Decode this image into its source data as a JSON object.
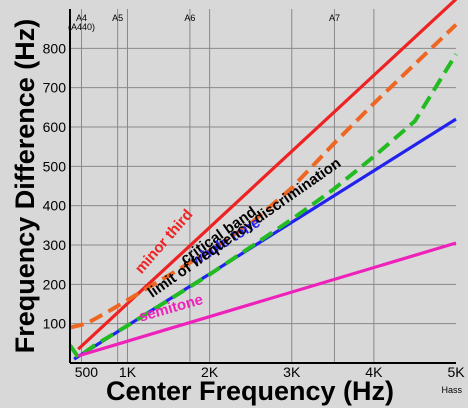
{
  "chart_data": {
    "type": "line",
    "title": "",
    "xlabel": "Center Frequency (Hz)",
    "ylabel": "Frequency Difference (Hz)",
    "xlim": [
      300,
      5000
    ],
    "ylim": [
      0,
      900
    ],
    "x_ticks": [
      {
        "value": 500,
        "label": "500"
      },
      {
        "value": 1000,
        "label": "1K"
      },
      {
        "value": 2000,
        "label": "2K"
      },
      {
        "value": 3000,
        "label": "3K"
      },
      {
        "value": 4000,
        "label": "4K"
      },
      {
        "value": 5000,
        "label": "5K"
      }
    ],
    "y_ticks": [
      {
        "value": 100,
        "label": "100"
      },
      {
        "value": 200,
        "label": "200"
      },
      {
        "value": 300,
        "label": "300"
      },
      {
        "value": 400,
        "label": "400"
      },
      {
        "value": 500,
        "label": "500"
      },
      {
        "value": 600,
        "label": "600"
      },
      {
        "value": 700,
        "label": "700"
      },
      {
        "value": 800,
        "label": "800"
      }
    ],
    "vertical_gridlines": [
      440,
      880,
      1000,
      1760,
      2000,
      3000,
      3520,
      4000
    ],
    "note_markers": [
      {
        "value": 440,
        "lines": [
          "A4",
          "(A440)"
        ]
      },
      {
        "value": 880,
        "lines": [
          "A5"
        ]
      },
      {
        "value": 1760,
        "lines": [
          "A6"
        ]
      },
      {
        "value": 3520,
        "lines": [
          "A7"
        ]
      }
    ],
    "credit": "Hass",
    "series": [
      {
        "name": "minor third",
        "color": "#ee2222",
        "style": "solid",
        "x": [
          400,
          5000
        ],
        "y": [
          35,
          925
        ]
      },
      {
        "name": "critical band",
        "color": "#ee6622",
        "style": "dashed",
        "x": [
          300,
          500,
          800,
          1200,
          1600,
          2000,
          2500,
          3000,
          3500,
          4000,
          4500,
          5000
        ],
        "y": [
          90,
          100,
          135,
          185,
          235,
          285,
          355,
          445,
          555,
          660,
          760,
          860
        ]
      },
      {
        "name": "whole tone",
        "color": "#2222ee",
        "style": "solid",
        "x": [
          350,
          5000
        ],
        "y": [
          10,
          620
        ]
      },
      {
        "name": "limit of frequency discrimination",
        "color": "#22bb22",
        "style": "dashed",
        "x": [
          300,
          400,
          600,
          1000,
          1500,
          2000,
          2500,
          3000,
          3500,
          4000,
          4500,
          5000
        ],
        "y": [
          45,
          15,
          45,
          95,
          160,
          225,
          295,
          365,
          440,
          525,
          615,
          785
        ]
      },
      {
        "name": "semitone",
        "color": "#ee22bb",
        "style": "solid",
        "x": [
          400,
          5000
        ],
        "y": [
          18,
          305
        ]
      }
    ],
    "series_labels": [
      {
        "text": "minor third",
        "color": "#ee2222",
        "x": 1170,
        "y": 225,
        "angle": -49
      },
      {
        "text": "critical band",
        "color": "#000000",
        "x": 1700,
        "y": 250,
        "angle": -35
      },
      {
        "text": "whole tone",
        "color": "#2222ee",
        "x": 1820,
        "y": 245,
        "angle": -32
      },
      {
        "text": "limit of frequency discrimination",
        "color": "#000000",
        "x": 1300,
        "y": 165,
        "angle": -35
      },
      {
        "text": "semitone",
        "color": "#ee22bb",
        "x": 1160,
        "y": 105,
        "angle": -16
      }
    ],
    "grid": true,
    "legend": "none"
  }
}
